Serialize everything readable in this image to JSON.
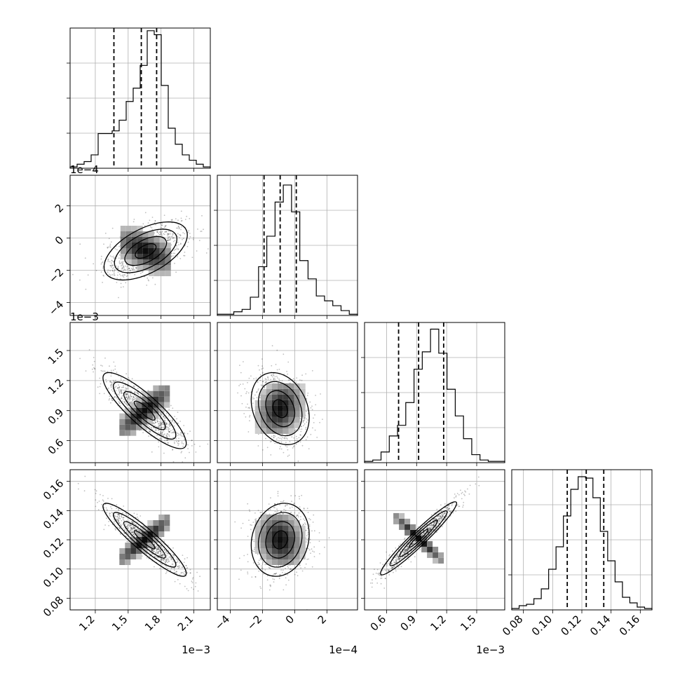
{
  "chart_data": {
    "type": "corner",
    "description": "",
    "params": [
      {
        "id": "p0",
        "range": [
          0.00097,
          0.00225
        ],
        "ticks": [
          0.0012,
          0.0015,
          0.0018,
          0.0021
        ],
        "tick_labels": [
          "1.2",
          "1.5",
          "1.8",
          "2.1"
        ],
        "offset_text": "1e−3",
        "quantiles": [
          0.00137,
          0.00162,
          0.00176
        ]
      },
      {
        "id": "p1",
        "range": [
          -0.00048,
          0.00039
        ],
        "ticks": [
          -0.0004,
          -0.0002,
          0.0,
          0.0002
        ],
        "tick_labels": [
          "−4",
          "−2",
          "0",
          "2"
        ],
        "offset_text": "1e−4",
        "quantiles": [
          -0.00019,
          -9e-05,
          1e-05
        ]
      },
      {
        "id": "p2",
        "range": [
          0.00038,
          0.00178
        ],
        "ticks": [
          0.0006,
          0.0009,
          0.0012,
          0.0015
        ],
        "tick_labels": [
          "0.6",
          "0.9",
          "1.2",
          "1.5"
        ],
        "offset_text": "1e−3",
        "quantiles": [
          0.00072,
          0.00092,
          0.00117
        ]
      },
      {
        "id": "p3",
        "range": [
          0.072,
          0.168
        ],
        "ticks": [
          0.08,
          0.1,
          0.12,
          0.14,
          0.16
        ],
        "tick_labels": [
          "0.08",
          "0.10",
          "0.12",
          "0.14",
          "0.16"
        ],
        "offset_text": "",
        "quantiles": [
          0.11,
          0.123,
          0.135
        ]
      }
    ],
    "histograms": [
      {
        "param": "p0",
        "counts": [
          1,
          3,
          5,
          10,
          26,
          26,
          28,
          36,
          50,
          60,
          77,
          103,
          100,
          62,
          30,
          18,
          10,
          6,
          3,
          1
        ],
        "ylim": [
          0,
          105
        ]
      },
      {
        "param": "p1",
        "counts": [
          1,
          1,
          3,
          5,
          15,
          40,
          65,
          93,
          107,
          85,
          45,
          30,
          16,
          12,
          8,
          4,
          1
        ],
        "ylim": [
          0,
          115
        ]
      },
      {
        "param": "p2",
        "counts": [
          1,
          2,
          8,
          20,
          28,
          45,
          70,
          83,
          100,
          82,
          55,
          35,
          18,
          6,
          2,
          1,
          1
        ],
        "ylim": [
          0,
          105
        ]
      },
      {
        "param": "p3",
        "counts": [
          1,
          3,
          4,
          8,
          15,
          29,
          45,
          67,
          86,
          95,
          94,
          80,
          56,
          35,
          20,
          9,
          5,
          2,
          1
        ],
        "ylim": [
          0,
          100
        ]
      }
    ],
    "pairs": [
      {
        "x": "p0",
        "y": "p1",
        "center": [
          0.00166,
          -8e-05
        ],
        "sd": [
          0.00019,
          9e-05
        ],
        "rho": 0.55
      },
      {
        "x": "p0",
        "y": "p2",
        "center": [
          0.00165,
          0.0009
        ],
        "sd": [
          0.00019,
          0.00019
        ],
        "rho": -0.86
      },
      {
        "x": "p1",
        "y": "p2",
        "center": [
          -9e-05,
          0.00092
        ],
        "sd": [
          9e-05,
          0.00018
        ],
        "rho": -0.25
      },
      {
        "x": "p0",
        "y": "p3",
        "center": [
          0.00165,
          0.12
        ],
        "sd": [
          0.00019,
          0.0125
        ],
        "rho": -0.92
      },
      {
        "x": "p1",
        "y": "p3",
        "center": [
          -9e-05,
          0.12
        ],
        "sd": [
          9e-05,
          0.0125
        ],
        "rho": 0.15
      },
      {
        "x": "p2",
        "y": "p3",
        "center": [
          0.00092,
          0.121
        ],
        "sd": [
          0.00019,
          0.0125
        ],
        "rho": 0.96
      }
    ],
    "grid": true,
    "colors": {
      "line": "#000000",
      "grid": "#b0b0b0",
      "points": "#000000",
      "density": [
        "#ffffff",
        "#000000"
      ]
    }
  }
}
